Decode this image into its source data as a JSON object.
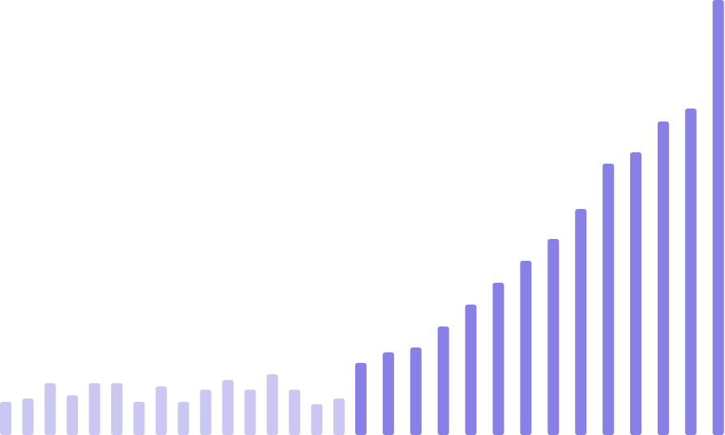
{
  "colors": {
    "background": "#ffffff",
    "muted_bar": "#cbc7f3",
    "highlight_bar": "#8880e6"
  },
  "chart_data": {
    "type": "bar",
    "title": "",
    "xlabel": "",
    "ylabel": "",
    "axes_visible": false,
    "grid": false,
    "legend": "none",
    "ylim": [
      0,
      537
    ],
    "series": [
      {
        "color_key": "muted_bar",
        "values": [
          41,
          45,
          64,
          49,
          64,
          64,
          41,
          60,
          41,
          56,
          68,
          56,
          75,
          56,
          38,
          45
        ]
      },
      {
        "color_key": "highlight_bar",
        "values": [
          89,
          102,
          108,
          134,
          161,
          188,
          215,
          242,
          279,
          335,
          349,
          387,
          403,
          537
        ]
      }
    ]
  }
}
